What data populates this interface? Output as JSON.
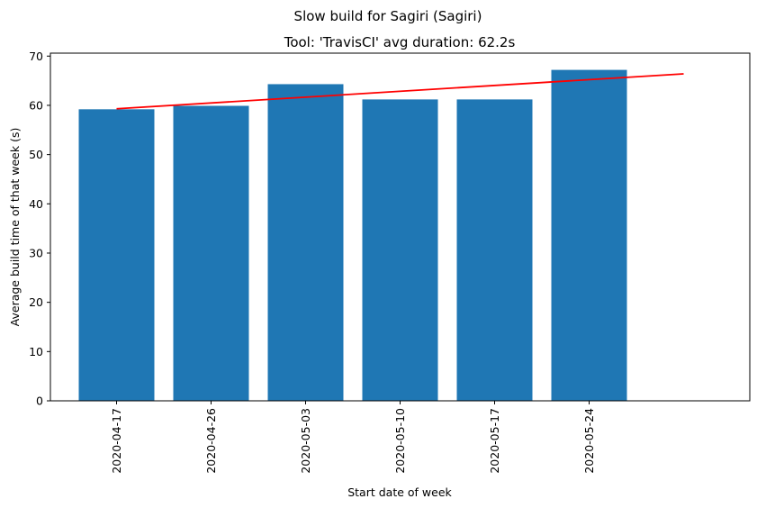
{
  "chart_data": {
    "type": "bar",
    "suptitle": "Slow build for Sagiri (Sagiri)",
    "title": "Tool: 'TravisCI' avg duration: 62.2s",
    "xlabel": "Start date of week",
    "ylabel": "Average build time of that week (s)",
    "categories": [
      "2020-04-17",
      "2020-04-26",
      "2020-05-03",
      "2020-05-10",
      "2020-05-17",
      "2020-05-24"
    ],
    "values": [
      59.2,
      59.9,
      64.3,
      61.2,
      61.2,
      67.2
    ],
    "bar_color": "#1f77b4",
    "trend_line": {
      "color": "#ff0000",
      "start": 59.3,
      "end": 66.4,
      "x_start_index": 0,
      "x_end_index": 6
    },
    "ylim": [
      0,
      70.6
    ],
    "yticks": [
      0,
      10,
      20,
      30,
      40,
      50,
      60,
      70
    ],
    "grid": false,
    "legend": "none"
  }
}
